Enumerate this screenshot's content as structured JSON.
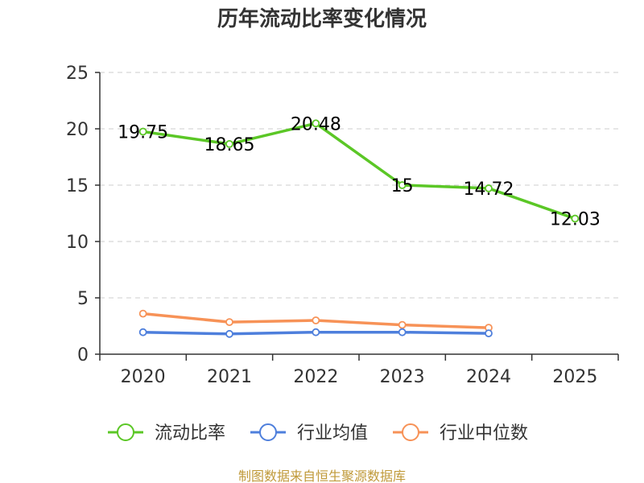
{
  "chart_data": {
    "type": "line",
    "title": "历年流动比率变化情况",
    "categories": [
      "2020",
      "2021",
      "2022",
      "2023",
      "2024",
      "2025"
    ],
    "ylim": [
      0,
      25
    ],
    "yticks": [
      0,
      5,
      10,
      15,
      20,
      25
    ],
    "grid": true,
    "legend_position": "bottom",
    "series": [
      {
        "name": "流动比率",
        "color": "#5bc726",
        "values": [
          19.75,
          18.65,
          20.48,
          15,
          14.72,
          12.03
        ],
        "labels": [
          "19.75",
          "18.65",
          "20.48",
          "15",
          "14.72",
          "12.03"
        ]
      },
      {
        "name": "行业均值",
        "color": "#4e7fdc",
        "values": [
          1.95,
          1.8,
          1.95,
          1.95,
          1.85,
          null
        ]
      },
      {
        "name": "行业中位数",
        "color": "#f79257",
        "values": [
          3.6,
          2.85,
          3.0,
          2.6,
          2.35,
          null
        ]
      }
    ]
  },
  "footer": "制图数据来自恒生聚源数据库"
}
